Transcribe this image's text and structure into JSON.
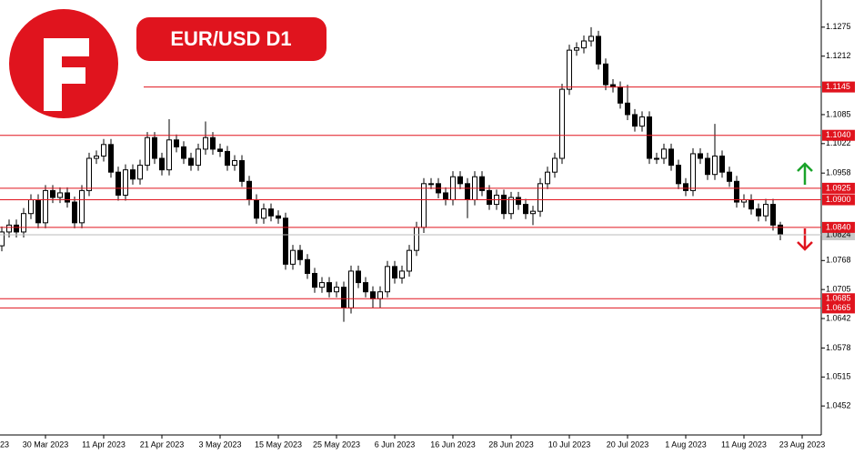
{
  "chart_data": {
    "type": "candlestick",
    "title": "EUR/USD D1",
    "ylim": [
      1.0389,
      1.1334
    ],
    "yticks": [
      1.1275,
      1.1212,
      1.1085,
      1.1022,
      1.0958,
      1.0768,
      1.0705,
      1.0642,
      1.0578,
      1.0515,
      1.0452
    ],
    "xticks": [
      {
        "value": -2,
        "label": "23"
      },
      {
        "value": 6,
        "label": "30 Mar 2023"
      },
      {
        "value": 14,
        "label": "11 Apr 2023"
      },
      {
        "value": 22,
        "label": "21 Apr 2023"
      },
      {
        "value": 30,
        "label": "3 May 2023"
      },
      {
        "value": 38,
        "label": "15 May 2023"
      },
      {
        "value": 46,
        "label": "25 May 2023"
      },
      {
        "value": 54,
        "label": "6 Jun 2023"
      },
      {
        "value": 62,
        "label": "16 Jun 2023"
      },
      {
        "value": 70,
        "label": "28 Jun 2023"
      },
      {
        "value": 78,
        "label": "10 Jul 2023"
      },
      {
        "value": 86,
        "label": "20 Jul 2023"
      },
      {
        "value": 94,
        "label": "1 Aug 2023"
      },
      {
        "value": 102,
        "label": "11 Aug 2023"
      },
      {
        "value": 110,
        "label": "23 Aug 2023"
      }
    ],
    "levels": [
      1.1145,
      {
        "value": 1.104,
        "label": "1.1040"
      },
      1.0925,
      {
        "value": 1.09,
        "label": "1.0900"
      },
      {
        "value": 1.084,
        "label": "1.0840"
      },
      1.0685,
      1.0665
    ],
    "level_color": "#e0141e",
    "current": 1.0824,
    "up_color": "#ffffff",
    "down_color": "#000000",
    "open": [
      1.08,
      1.083,
      1.0845,
      1.083,
      1.087,
      1.09,
      1.085,
      1.092,
      1.0905,
      1.0915,
      1.0895,
      1.085,
      1.092,
      1.099,
      1.0995,
      1.102,
      1.096,
      1.091,
      1.0965,
      1.0945,
      1.0975,
      1.1035,
      1.099,
      1.0965,
      1.103,
      1.1015,
      1.099,
      1.0975,
      1.101,
      1.1035,
      1.101,
      1.1005,
      1.0975,
      1.0985,
      1.094,
      1.09,
      1.086,
      1.088,
      1.0865,
      1.086,
      1.076,
      1.079,
      1.077,
      1.074,
      1.071,
      1.072,
      1.07,
      1.071,
      1.0665,
      1.0745,
      1.072,
      1.07,
      1.0685,
      1.07,
      1.0755,
      1.073,
      1.0745,
      1.079,
      1.084,
      1.0935,
      1.0935,
      1.0915,
      1.09,
      1.095,
      1.0935,
      1.09,
      1.095,
      1.092,
      1.089,
      1.091,
      1.087,
      1.0905,
      1.089,
      1.087,
      1.0875,
      1.0935,
      1.096,
      1.099,
      1.114,
      1.1225,
      1.123,
      1.1245,
      1.1255,
      1.1195,
      1.115,
      1.1145,
      1.111,
      1.1085,
      1.106,
      1.108,
      1.099,
      1.099,
      1.101,
      1.0975,
      1.0935,
      1.092,
      1.1,
      1.099,
      1.0955,
      1.0995,
      1.096,
      1.094,
      1.0895,
      1.09,
      1.088,
      1.0865,
      1.089,
      1.0845
    ],
    "high": [
      1.0842,
      1.0857,
      1.0857,
      1.0882,
      1.0912,
      1.0912,
      1.0932,
      1.0932,
      1.0927,
      1.0927,
      1.0907,
      1.0932,
      1.1002,
      1.1007,
      1.1032,
      1.1032,
      1.0972,
      1.0977,
      1.0977,
      1.0987,
      1.1047,
      1.1047,
      1.1002,
      1.1075,
      1.1042,
      1.1027,
      1.1002,
      1.1022,
      1.107,
      1.1047,
      1.1022,
      1.1017,
      1.0997,
      1.0997,
      1.0952,
      1.0912,
      1.0892,
      1.0892,
      1.0877,
      1.0872,
      1.0802,
      1.0802,
      1.0782,
      1.0752,
      1.0732,
      1.0732,
      1.0722,
      1.0722,
      1.0757,
      1.0757,
      1.0732,
      1.0712,
      1.0712,
      1.0767,
      1.0767,
      1.0757,
      1.0802,
      1.0852,
      1.0947,
      1.0947,
      1.0947,
      1.0927,
      1.0962,
      1.0962,
      1.0947,
      1.0962,
      1.0962,
      1.0932,
      1.0922,
      1.0922,
      1.0917,
      1.0917,
      1.0902,
      1.0887,
      1.0947,
      1.0972,
      1.1002,
      1.1152,
      1.1237,
      1.1242,
      1.1257,
      1.1275,
      1.1267,
      1.1207,
      1.1162,
      1.1157,
      1.115,
      1.1097,
      1.1092,
      1.1092,
      1.1002,
      1.1022,
      1.1022,
      1.0987,
      1.0947,
      1.1012,
      1.1012,
      1.1002,
      1.1065,
      1.1007,
      1.0972,
      1.0952,
      1.0912,
      1.0912,
      1.0892,
      1.0902,
      1.0902,
      1.0852
    ],
    "low": [
      1.0788,
      1.0818,
      1.0818,
      1.0818,
      1.0858,
      1.0838,
      1.0838,
      1.0893,
      1.0893,
      1.0883,
      1.0838,
      1.0838,
      1.0908,
      1.0978,
      1.0983,
      1.0948,
      1.0898,
      1.0898,
      1.0933,
      1.0933,
      1.0963,
      1.0978,
      1.0953,
      1.0953,
      1.1003,
      1.0978,
      1.0963,
      1.0963,
      1.0998,
      1.0998,
      1.0993,
      1.0963,
      1.0963,
      1.0928,
      1.0888,
      1.0848,
      1.0848,
      1.0853,
      1.0848,
      1.0748,
      1.0748,
      1.0758,
      1.0728,
      1.0698,
      1.0698,
      1.0688,
      1.0688,
      1.0635,
      1.0653,
      1.0708,
      1.0688,
      1.0665,
      1.0665,
      1.0688,
      1.0718,
      1.0718,
      1.0733,
      1.0778,
      1.0828,
      1.0923,
      1.0903,
      1.0888,
      1.0888,
      1.0923,
      1.086,
      1.0888,
      1.0908,
      1.0878,
      1.0878,
      1.0858,
      1.0858,
      1.0878,
      1.0858,
      1.0845,
      1.0863,
      1.0923,
      1.0948,
      1.0978,
      1.1128,
      1.1213,
      1.1218,
      1.1233,
      1.1183,
      1.1138,
      1.1133,
      1.1098,
      1.1073,
      1.1048,
      1.1048,
      1.0978,
      1.0978,
      1.0978,
      1.0963,
      1.0923,
      1.0908,
      1.0908,
      1.0978,
      1.0943,
      1.0943,
      1.0948,
      1.0928,
      1.0883,
      1.0883,
      1.0868,
      1.0853,
      1.0853,
      1.0833,
      1.0812
    ],
    "close": [
      1.083,
      1.0845,
      1.083,
      1.087,
      1.09,
      1.085,
      1.092,
      1.0905,
      1.0915,
      1.0895,
      1.085,
      1.092,
      1.099,
      1.0995,
      1.102,
      1.096,
      1.091,
      1.0965,
      1.0945,
      1.0975,
      1.1035,
      1.099,
      1.0965,
      1.103,
      1.1015,
      1.099,
      1.0975,
      1.101,
      1.1035,
      1.101,
      1.1005,
      1.0975,
      1.0985,
      1.094,
      1.09,
      1.086,
      1.088,
      1.0865,
      1.086,
      1.076,
      1.079,
      1.077,
      1.074,
      1.071,
      1.072,
      1.07,
      1.071,
      1.0665,
      1.0745,
      1.072,
      1.07,
      1.0685,
      1.07,
      1.0755,
      1.073,
      1.0745,
      1.079,
      1.084,
      1.0935,
      1.0935,
      1.0915,
      1.09,
      1.095,
      1.0935,
      1.09,
      1.095,
      1.092,
      1.089,
      1.091,
      1.087,
      1.0905,
      1.089,
      1.087,
      1.0875,
      1.0935,
      1.096,
      1.099,
      1.114,
      1.1225,
      1.123,
      1.1245,
      1.1255,
      1.1195,
      1.115,
      1.1145,
      1.111,
      1.1085,
      1.106,
      1.108,
      1.099,
      1.099,
      1.101,
      1.0975,
      1.0935,
      1.092,
      1.1,
      1.099,
      1.0955,
      1.0995,
      1.096,
      1.094,
      1.0895,
      1.09,
      1.088,
      1.0865,
      1.089,
      1.0845,
      1.0824
    ]
  }
}
